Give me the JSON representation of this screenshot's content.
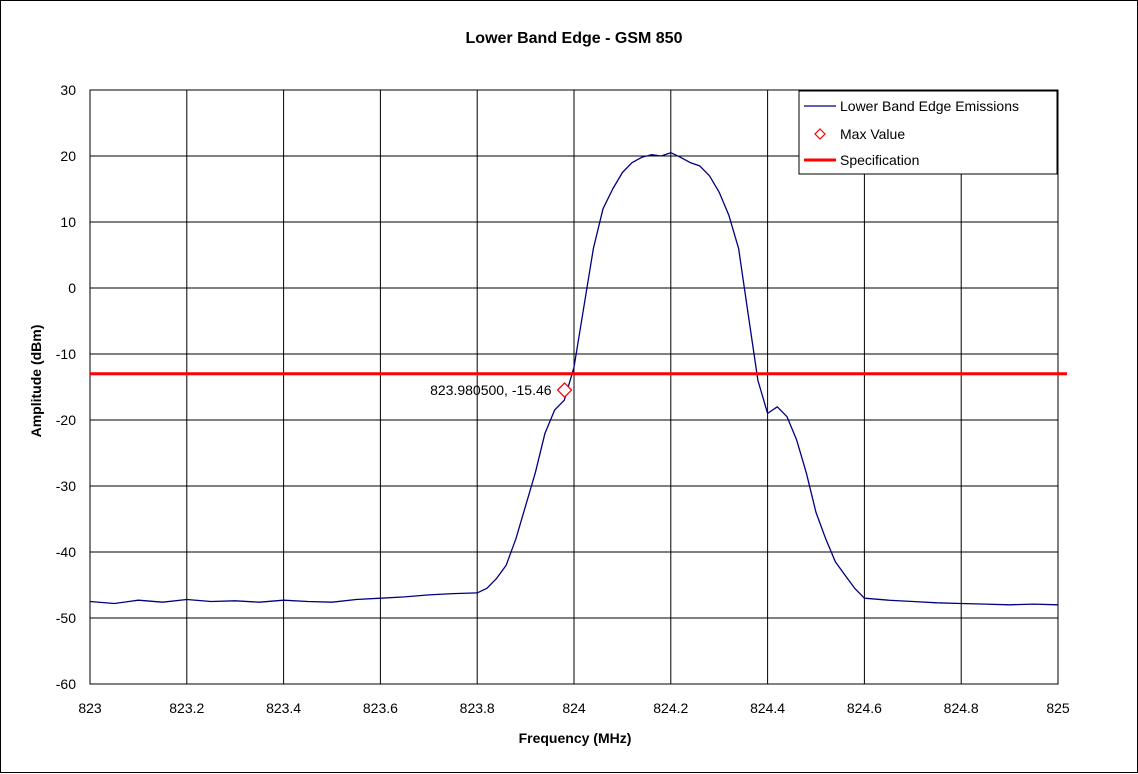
{
  "chart_data": {
    "type": "line",
    "title": "Lower Band Edge - GSM 850",
    "xlabel": "Frequency (MHz)",
    "ylabel": "Amplitude (dBm)",
    "xlim": [
      823,
      825
    ],
    "ylim": [
      -60,
      30
    ],
    "x_ticks": [
      823,
      823.2,
      823.4,
      823.6,
      823.8,
      824,
      824.2,
      824.4,
      824.6,
      824.8,
      825
    ],
    "x_tick_labels": [
      "823",
      "823.2",
      "823.4",
      "823.6",
      "823.8",
      "824",
      "824.2",
      "824.4",
      "824.6",
      "824.8",
      "825"
    ],
    "y_ticks": [
      -60,
      -50,
      -40,
      -30,
      -20,
      -10,
      0,
      10,
      20,
      30
    ],
    "y_tick_labels": [
      "-60",
      "-50",
      "-40",
      "-30",
      "-20",
      "-10",
      "0",
      "10",
      "20",
      "30"
    ],
    "grid": true,
    "legend_position": "top-right",
    "series": [
      {
        "name": "Lower Band Edge Emissions",
        "kind": "line",
        "color": "#000080",
        "x": [
          823.0,
          823.05,
          823.1,
          823.15,
          823.2,
          823.25,
          823.3,
          823.35,
          823.4,
          823.45,
          823.5,
          823.55,
          823.6,
          823.65,
          823.7,
          823.75,
          823.8,
          823.82,
          823.84,
          823.86,
          823.88,
          823.9,
          823.92,
          823.94,
          823.96,
          823.98,
          824.0,
          824.02,
          824.04,
          824.06,
          824.08,
          824.1,
          824.12,
          824.14,
          824.16,
          824.18,
          824.2,
          824.22,
          824.24,
          824.26,
          824.28,
          824.3,
          824.32,
          824.34,
          824.36,
          824.38,
          824.4,
          824.42,
          824.44,
          824.46,
          824.48,
          824.5,
          824.52,
          824.54,
          824.56,
          824.58,
          824.6,
          824.65,
          824.7,
          824.75,
          824.8,
          824.85,
          824.9,
          824.95,
          825.0
        ],
        "y": [
          -47.5,
          -47.8,
          -47.3,
          -47.6,
          -47.2,
          -47.5,
          -47.4,
          -47.6,
          -47.3,
          -47.5,
          -47.6,
          -47.2,
          -47.0,
          -46.8,
          -46.5,
          -46.3,
          -46.2,
          -45.5,
          -44.0,
          -42.0,
          -38.0,
          -33.0,
          -28.0,
          -22.0,
          -18.5,
          -17.0,
          -12.0,
          -3.0,
          6.0,
          12.0,
          15.0,
          17.5,
          19.0,
          19.8,
          20.2,
          20.0,
          20.5,
          19.8,
          19.0,
          18.5,
          17.0,
          14.5,
          11.0,
          6.0,
          -4.0,
          -14.0,
          -19.0,
          -18.0,
          -19.5,
          -23.0,
          -28.0,
          -34.0,
          -38.0,
          -41.5,
          -43.5,
          -45.5,
          -47.0,
          -47.3,
          -47.5,
          -47.7,
          -47.8,
          -47.9,
          -48.0,
          -47.9,
          -48.0
        ]
      },
      {
        "name": "Max Value",
        "kind": "marker",
        "color": "#ff0000",
        "x": [
          823.9805
        ],
        "y": [
          -15.46
        ]
      },
      {
        "name": "Specification",
        "kind": "hline",
        "color": "#ff0000",
        "y": -13
      }
    ],
    "annotations": [
      {
        "text": "823.980500, -15.46",
        "x": 823.9805,
        "y": -15.46
      }
    ]
  }
}
